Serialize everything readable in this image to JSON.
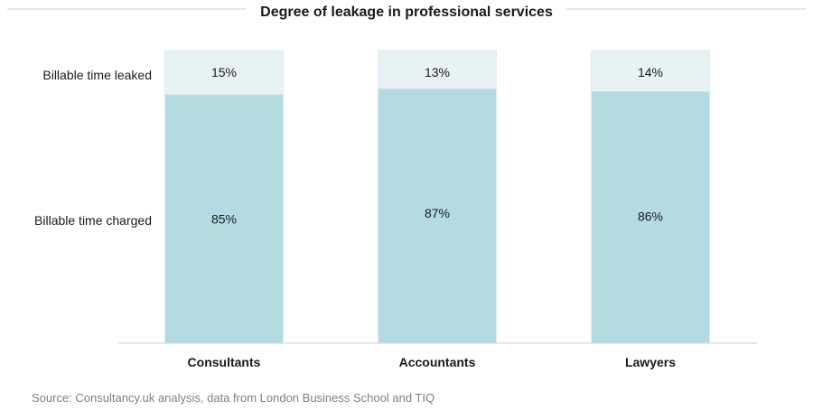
{
  "chart_data": {
    "type": "bar",
    "stacked": true,
    "percent": true,
    "title": "Degree of leakage in professional services",
    "categories": [
      "Consultants",
      "Accountants",
      "Lawyers"
    ],
    "series": [
      {
        "name": "Billable time charged",
        "values": [
          85,
          87,
          86
        ],
        "labels": [
          "85%",
          "87%",
          "86%"
        ],
        "color": "#b4dbe2"
      },
      {
        "name": "Billable time leaked",
        "values": [
          15,
          13,
          14
        ],
        "labels": [
          "15%",
          "13%",
          "14%"
        ],
        "color": "#e6f2f4"
      }
    ],
    "ylim": [
      0,
      100
    ],
    "grid": false,
    "legend": "row labels at left",
    "source": "Source: Consultancy.uk analysis, data from London Business School and TIQ"
  }
}
